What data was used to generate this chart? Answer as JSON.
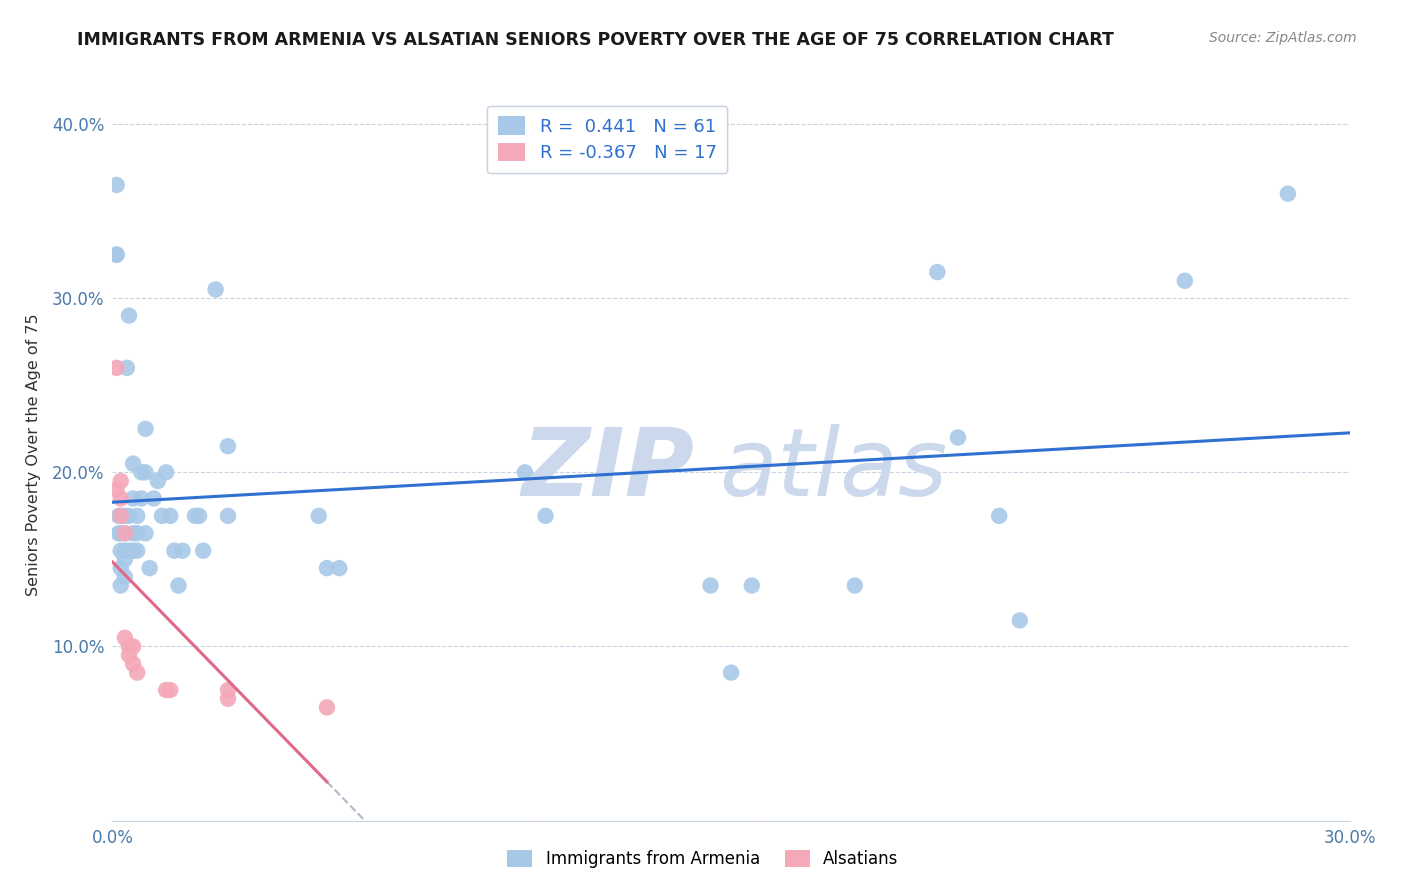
{
  "title": "IMMIGRANTS FROM ARMENIA VS ALSATIAN SENIORS POVERTY OVER THE AGE OF 75 CORRELATION CHART",
  "source": "Source: ZipAtlas.com",
  "ylabel": "Seniors Poverty Over the Age of 75",
  "xlim": [
    0.0,
    0.3
  ],
  "ylim": [
    0.0,
    0.42
  ],
  "x_ticks": [
    0.0,
    0.05,
    0.1,
    0.15,
    0.2,
    0.25,
    0.3
  ],
  "x_tick_labels": [
    "0.0%",
    "",
    "",
    "",
    "",
    "",
    "30.0%"
  ],
  "y_ticks": [
    0.0,
    0.1,
    0.2,
    0.3,
    0.4
  ],
  "y_tick_labels": [
    "",
    "10.0%",
    "20.0%",
    "30.0%",
    "40.0%"
  ],
  "armenia_R": 0.441,
  "armenia_N": 61,
  "alsatian_R": -0.367,
  "alsatian_N": 17,
  "armenia_color": "#a8c8e8",
  "alsatian_color": "#f4a8b8",
  "armenia_line_color": "#3070d0",
  "alsatian_line_color": "#e06888",
  "armenia_x": [
    0.001,
    0.001,
    0.001,
    0.0015,
    0.0015,
    0.002,
    0.002,
    0.002,
    0.002,
    0.002,
    0.003,
    0.003,
    0.003,
    0.003,
    0.003,
    0.0035,
    0.004,
    0.004,
    0.004,
    0.005,
    0.005,
    0.005,
    0.005,
    0.006,
    0.006,
    0.006,
    0.007,
    0.007,
    0.008,
    0.008,
    0.008,
    0.009,
    0.01,
    0.011,
    0.012,
    0.013,
    0.014,
    0.015,
    0.016,
    0.017,
    0.02,
    0.021,
    0.022,
    0.025,
    0.028,
    0.028,
    0.05,
    0.052,
    0.055,
    0.1,
    0.105,
    0.145,
    0.15,
    0.155,
    0.18,
    0.2,
    0.205,
    0.215,
    0.22,
    0.26,
    0.285
  ],
  "armenia_y": [
    0.365,
    0.325,
    0.325,
    0.175,
    0.165,
    0.175,
    0.165,
    0.155,
    0.145,
    0.135,
    0.175,
    0.165,
    0.155,
    0.15,
    0.14,
    0.26,
    0.29,
    0.175,
    0.155,
    0.205,
    0.185,
    0.165,
    0.155,
    0.175,
    0.165,
    0.155,
    0.2,
    0.185,
    0.225,
    0.2,
    0.165,
    0.145,
    0.185,
    0.195,
    0.175,
    0.2,
    0.175,
    0.155,
    0.135,
    0.155,
    0.175,
    0.175,
    0.155,
    0.305,
    0.215,
    0.175,
    0.175,
    0.145,
    0.145,
    0.2,
    0.175,
    0.135,
    0.085,
    0.135,
    0.135,
    0.315,
    0.22,
    0.175,
    0.115,
    0.31,
    0.36
  ],
  "alsatian_x": [
    0.001,
    0.001,
    0.002,
    0.002,
    0.002,
    0.003,
    0.003,
    0.004,
    0.004,
    0.005,
    0.005,
    0.006,
    0.013,
    0.014,
    0.028,
    0.028,
    0.052
  ],
  "alsatian_y": [
    0.26,
    0.19,
    0.195,
    0.185,
    0.175,
    0.165,
    0.105,
    0.1,
    0.095,
    0.1,
    0.09,
    0.085,
    0.075,
    0.075,
    0.075,
    0.07,
    0.065
  ],
  "alsatian_line_x_start": 0.0,
  "alsatian_line_x_end": 0.13,
  "alsatian_line_x_dash_end": 0.22,
  "watermark_zip": "ZIP",
  "watermark_atlas": "atlas",
  "legend1_label": "R =  0.441   N = 61",
  "legend2_label": "R = -0.367   N = 17",
  "bottom_legend1": "Immigrants from Armenia",
  "bottom_legend2": "Alsatians"
}
